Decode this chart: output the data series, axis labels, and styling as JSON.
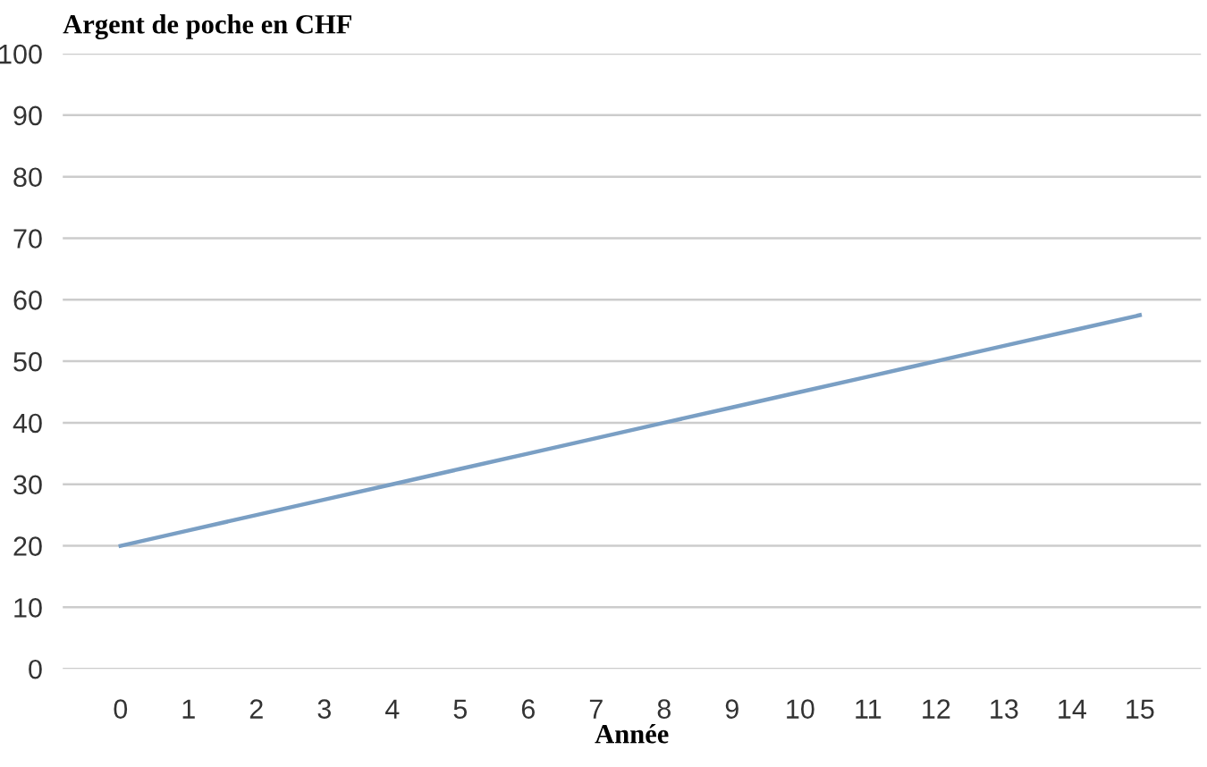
{
  "chart_data": {
    "type": "line",
    "title": "Argent de poche en CHF",
    "xlabel": "Année",
    "x": [
      0,
      1,
      2,
      3,
      4,
      5,
      6,
      7,
      8,
      9,
      10,
      11,
      12,
      13,
      14,
      15
    ],
    "series": [
      {
        "color": "#7a9fc4",
        "values": [
          20,
          22.5,
          25,
          27.5,
          30,
          32.5,
          35,
          37.5,
          40,
          42.5,
          45,
          47.5,
          50,
          52.5,
          55,
          57.5
        ]
      }
    ],
    "xlim": [
      -0.85,
      15.9
    ],
    "xticks": [
      0,
      1,
      2,
      3,
      4,
      5,
      6,
      7,
      8,
      9,
      10,
      11,
      12,
      13,
      14,
      15
    ],
    "ylim": [
      0,
      100
    ],
    "yticks": [
      0,
      10,
      20,
      30,
      40,
      50,
      60,
      70,
      80,
      90,
      100
    ],
    "grid": "y",
    "legend": false,
    "marker": "none",
    "line_style": "solid"
  }
}
